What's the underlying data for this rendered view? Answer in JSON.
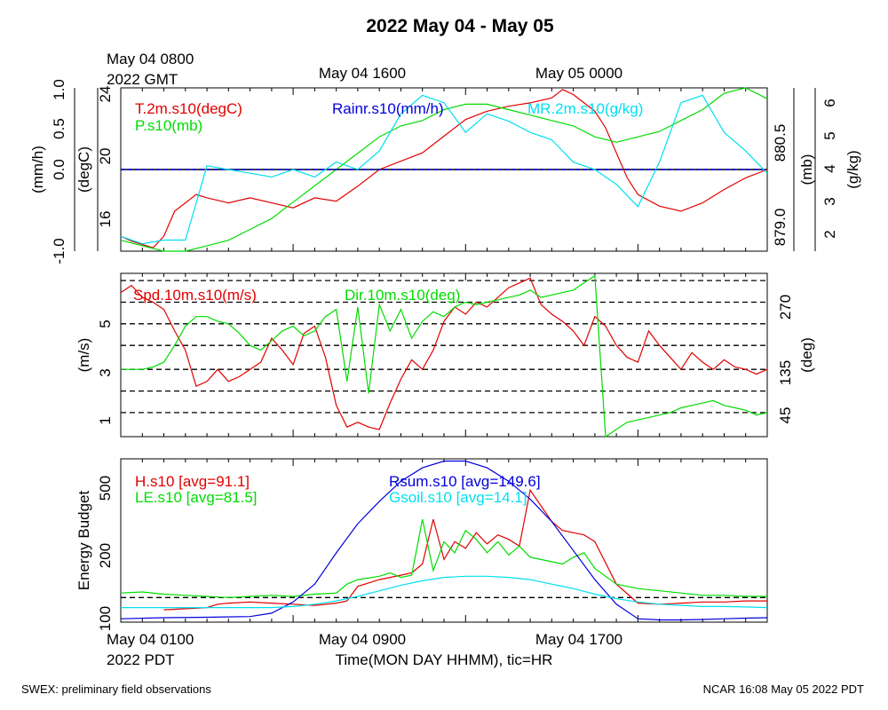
{
  "page": {
    "title": "2022 May 04 - May 05",
    "footer_left": "SWEX: preliminary field observations",
    "footer_right": "NCAR 16:08 May 05 2022 PDT",
    "x_axis_title": "Time(MON DAY HHMM), tic=HR",
    "gmt_labels": [
      {
        "l1": "May 04 0800",
        "l2": "2022 GMT"
      },
      {
        "l1": "May 04 1600",
        "l2": ""
      },
      {
        "l1": "May 05 0000",
        "l2": ""
      }
    ],
    "pdt_labels": [
      {
        "l1": "May 04 0100",
        "l2": "2022 PDT"
      },
      {
        "l1": "May 04 0900",
        "l2": ""
      },
      {
        "l1": "May 04 1700",
        "l2": ""
      }
    ]
  },
  "colors": {
    "red": "#e00000",
    "green": "#00dd00",
    "blue": "#0000dd",
    "cyan": "#00e0ee",
    "black": "#000000"
  },
  "chart_data": [
    {
      "type": "line",
      "panel": "meteorology",
      "x_unit": "hours since May 04 0000 PDT",
      "xlim": [
        1,
        31
      ],
      "axes": {
        "left1": {
          "label": "(mm/h)",
          "ticks": [
            "-1.0",
            "0.0",
            "0.5",
            "1.0"
          ],
          "ylim": [
            -1,
            1
          ]
        },
        "left2": {
          "label": "(degC)",
          "ticks": [
            "16",
            "20",
            "24"
          ],
          "ylim": [
            14.6,
            24.4
          ]
        },
        "right1": {
          "label": "(mb)",
          "ticks": [
            "879.0",
            "880.5"
          ],
          "ylim": [
            878.8,
            881.8
          ]
        },
        "right2": {
          "label": "(g/kg)",
          "ticks": [
            "2",
            "3",
            "4",
            "5",
            "6"
          ],
          "ylim": [
            1.8,
            6.2
          ]
        }
      },
      "series": [
        {
          "name": "T.2m.s10(degC)",
          "color": "red",
          "axis": "left2",
          "x": [
            1,
            1.5,
            2,
            2.5,
            3,
            3.5,
            4,
            4.5,
            5,
            6,
            7,
            8,
            9,
            10,
            11,
            12,
            13,
            14,
            15,
            16,
            17,
            18,
            19,
            20,
            21,
            21.5,
            22,
            22.5,
            23,
            23.5,
            24,
            24.5,
            25,
            26,
            27,
            28,
            29,
            30,
            31
          ],
          "y": [
            15.5,
            15.2,
            15.0,
            14.8,
            15.5,
            17.0,
            17.5,
            18.0,
            17.8,
            17.5,
            17.8,
            17.5,
            17.2,
            17.8,
            17.6,
            18.5,
            19.5,
            20.0,
            20.5,
            21.5,
            22.5,
            23.0,
            23.3,
            23.5,
            23.8,
            24.3,
            24.0,
            23.5,
            23.0,
            22.0,
            20.5,
            19.0,
            18.0,
            17.3,
            17.0,
            17.5,
            18.3,
            19.0,
            19.5
          ]
        },
        {
          "name": "P.s10(mb)",
          "color": "green",
          "axis": "right1",
          "x": [
            1,
            2,
            3,
            4,
            5,
            6,
            7,
            8,
            9,
            10,
            11,
            12,
            13,
            14,
            15,
            16,
            17,
            18,
            19,
            20,
            21,
            22,
            23,
            24,
            25,
            26,
            27,
            28,
            29,
            30,
            31
          ],
          "y": [
            879.0,
            878.9,
            878.8,
            878.8,
            878.9,
            879.0,
            879.2,
            879.4,
            879.7,
            880.0,
            880.3,
            880.6,
            880.9,
            881.1,
            881.2,
            881.4,
            881.5,
            881.5,
            881.4,
            881.3,
            881.2,
            881.1,
            880.9,
            880.8,
            880.9,
            881.0,
            881.2,
            881.4,
            881.7,
            881.8,
            881.6
          ]
        },
        {
          "name": "Rainr.s10(mm/h)",
          "color": "blue",
          "axis": "left1",
          "x": [
            1,
            31
          ],
          "y": [
            0.0,
            0.0
          ]
        },
        {
          "name": "MR.2m.s10(g/kg)",
          "color": "cyan",
          "axis": "right2",
          "x": [
            1,
            2,
            3,
            4,
            5,
            6,
            7,
            8,
            9,
            10,
            11,
            12,
            13,
            14,
            15,
            16,
            17,
            18,
            19,
            20,
            21,
            22,
            23,
            24,
            25,
            26,
            27,
            28,
            29,
            30,
            31
          ],
          "y": [
            2.2,
            2.0,
            2.1,
            2.1,
            4.1,
            4.0,
            3.9,
            3.8,
            4.0,
            3.8,
            4.2,
            4.0,
            4.5,
            5.5,
            6.0,
            5.8,
            5.0,
            5.5,
            5.3,
            5.0,
            4.8,
            4.2,
            4.0,
            3.6,
            3.0,
            4.2,
            5.8,
            6.0,
            5.0,
            4.5,
            3.9
          ]
        }
      ]
    },
    {
      "type": "line",
      "panel": "wind",
      "x_unit": "hours since May 04 0000 PDT",
      "xlim": [
        1,
        31
      ],
      "axes": {
        "left": {
          "label": "(m/s)",
          "ticks": [
            "1",
            "3",
            "5"
          ],
          "ylim": [
            0.2,
            7.0
          ]
        },
        "right": {
          "label": "(deg)",
          "ticks": [
            "45",
            "135",
            "270"
          ],
          "ylim": [
            0,
            340
          ]
        }
      },
      "grid_lines_y": [
        1.2,
        2.1,
        3.0,
        4.0,
        4.9,
        5.8,
        6.7
      ],
      "series": [
        {
          "name": "Spd.10m.s10(m/s)",
          "color": "red",
          "axis": "left",
          "x": [
            1,
            1.5,
            2,
            2.5,
            3,
            3.5,
            4,
            4.5,
            5,
            5.5,
            6,
            6.5,
            7,
            7.5,
            8,
            8.5,
            9,
            9.5,
            10,
            10.5,
            11,
            11.5,
            12,
            12.5,
            13,
            13.5,
            14,
            14.5,
            15,
            15.5,
            16,
            16.5,
            17,
            17.5,
            18,
            18.5,
            19,
            19.5,
            20,
            20.5,
            21,
            21.5,
            22,
            22.5,
            23,
            23.5,
            24,
            24.5,
            25,
            25.5,
            26,
            26.5,
            27,
            27.5,
            28,
            28.5,
            29,
            29.5,
            30,
            30.5,
            31
          ],
          "y": [
            6.2,
            6.5,
            6.0,
            5.8,
            5.5,
            4.6,
            3.8,
            2.3,
            2.5,
            3.0,
            2.5,
            2.7,
            3.0,
            3.3,
            4.3,
            3.8,
            3.2,
            4.5,
            4.8,
            3.5,
            1.5,
            0.6,
            0.8,
            0.6,
            0.5,
            1.6,
            2.6,
            3.4,
            3.0,
            3.8,
            5.0,
            5.6,
            5.3,
            5.8,
            5.6,
            6.0,
            6.4,
            6.6,
            6.8,
            5.7,
            5.3,
            5.0,
            4.6,
            4.0,
            5.2,
            4.8,
            4.0,
            3.5,
            3.3,
            4.6,
            4.0,
            3.5,
            3.0,
            3.7,
            3.3,
            3.0,
            3.4,
            3.1,
            3.0,
            2.8,
            3.0
          ]
        },
        {
          "name": "Dir.10m.s10(deg)",
          "color": "green",
          "axis": "left",
          "x": [
            1,
            1.5,
            2,
            2.5,
            3,
            3.5,
            4,
            4.5,
            5,
            5.5,
            6,
            6.5,
            7,
            7.5,
            8,
            8.5,
            9,
            9.5,
            10,
            10.5,
            11,
            11.5,
            12,
            12.5,
            13,
            13.5,
            14,
            14.5,
            15,
            15.5,
            16,
            16.5,
            17,
            17.5,
            18,
            18.5,
            19,
            19.5,
            20,
            20.5,
            21,
            21.5,
            22,
            22.5,
            23,
            23.5,
            24,
            24.5,
            25,
            25.5,
            26,
            26.5,
            27,
            27.5,
            28,
            28.5,
            29,
            29.5,
            30,
            30.5,
            31
          ],
          "y": [
            3.0,
            3.0,
            3.0,
            3.1,
            3.3,
            4.0,
            4.8,
            5.2,
            5.2,
            5.0,
            4.9,
            4.5,
            4.0,
            3.8,
            4.2,
            4.6,
            4.8,
            4.4,
            4.6,
            5.2,
            5.5,
            2.5,
            5.6,
            2.0,
            5.7,
            4.6,
            5.5,
            4.3,
            5.0,
            5.4,
            5.2,
            5.6,
            5.8,
            5.7,
            5.8,
            5.9,
            6.0,
            6.1,
            6.3,
            6.0,
            6.1,
            6.2,
            6.3,
            6.6,
            6.9,
            0.2,
            0.5,
            0.8,
            0.9,
            1.0,
            1.1,
            1.2,
            1.4,
            1.5,
            1.6,
            1.7,
            1.5,
            1.4,
            1.3,
            1.1,
            1.2
          ]
        }
      ]
    },
    {
      "type": "line",
      "panel": "energy",
      "x_unit": "hours since May 04 0000 PDT",
      "xlim": [
        1,
        31
      ],
      "axes": {
        "left": {
          "label": "Energy Budget",
          "ticks": [
            "100",
            "200",
            "500"
          ],
          "ylim": [
            -110,
            620
          ]
        }
      },
      "grid_lines_y": [
        0
      ],
      "series": [
        {
          "name": "H.s10 [avg=91.1]",
          "color": "red",
          "x": [
            3,
            4,
            5,
            5.5,
            6,
            7,
            8,
            9,
            10,
            11,
            11.5,
            12,
            13,
            13.5,
            14,
            14.5,
            15,
            15.5,
            16,
            16.5,
            17,
            17.5,
            18,
            18.5,
            19,
            19.5,
            20,
            21,
            21.5,
            22,
            22.5,
            23,
            24,
            25,
            26,
            27,
            28,
            29,
            30,
            31
          ],
          "y": [
            -55,
            -50,
            -45,
            -30,
            -25,
            -20,
            -25,
            -30,
            -35,
            -25,
            -15,
            50,
            80,
            90,
            100,
            110,
            150,
            350,
            170,
            250,
            220,
            290,
            240,
            280,
            260,
            230,
            480,
            340,
            300,
            290,
            280,
            250,
            60,
            -25,
            -30,
            -25,
            -20,
            -20,
            -15,
            -15
          ]
        },
        {
          "name": "LE.s10 [avg=81.5]",
          "color": "green",
          "x": [
            1,
            2,
            3,
            4,
            5,
            6,
            7,
            8,
            9,
            10,
            11,
            11.5,
            12,
            13,
            13.5,
            14,
            14.5,
            15,
            15.5,
            16,
            16.5,
            17,
            17.5,
            18,
            18.5,
            19,
            19.5,
            20,
            21,
            21.5,
            22,
            22.5,
            23,
            24,
            25,
            26,
            27,
            28,
            29,
            30,
            31
          ],
          "y": [
            20,
            25,
            15,
            10,
            5,
            0,
            5,
            10,
            5,
            15,
            20,
            60,
            80,
            95,
            110,
            90,
            100,
            350,
            120,
            250,
            200,
            300,
            260,
            200,
            250,
            190,
            230,
            180,
            160,
            150,
            180,
            200,
            130,
            60,
            40,
            30,
            20,
            10,
            10,
            5,
            5
          ]
        },
        {
          "name": "Rsum.s10 [avg=149.6]",
          "color": "blue",
          "x": [
            1,
            3,
            5,
            7,
            8,
            9,
            10,
            11,
            12,
            13,
            14,
            15,
            16,
            17,
            18,
            19,
            20,
            21,
            22,
            23,
            24,
            25,
            26,
            27,
            28,
            29,
            30,
            31
          ],
          "y": [
            -95,
            -90,
            -88,
            -85,
            -70,
            -20,
            60,
            200,
            330,
            430,
            520,
            580,
            610,
            610,
            580,
            520,
            440,
            340,
            210,
            80,
            -30,
            -95,
            -100,
            -100,
            -98,
            -95,
            -92,
            -90
          ]
        },
        {
          "name": "Gsoil.s10 [avg=14.1]",
          "color": "cyan",
          "x": [
            1,
            3,
            5,
            7,
            8,
            9,
            10,
            11,
            12,
            13,
            14,
            15,
            16,
            17,
            18,
            19,
            20,
            21,
            22,
            23,
            24,
            25,
            26,
            27,
            28,
            29,
            30,
            31
          ],
          "y": [
            -45,
            -45,
            -45,
            -45,
            -45,
            -40,
            -30,
            -15,
            5,
            30,
            55,
            75,
            90,
            95,
            95,
            90,
            80,
            60,
            40,
            15,
            -5,
            -20,
            -30,
            -35,
            -40,
            -40,
            -42,
            -45
          ]
        }
      ]
    }
  ]
}
